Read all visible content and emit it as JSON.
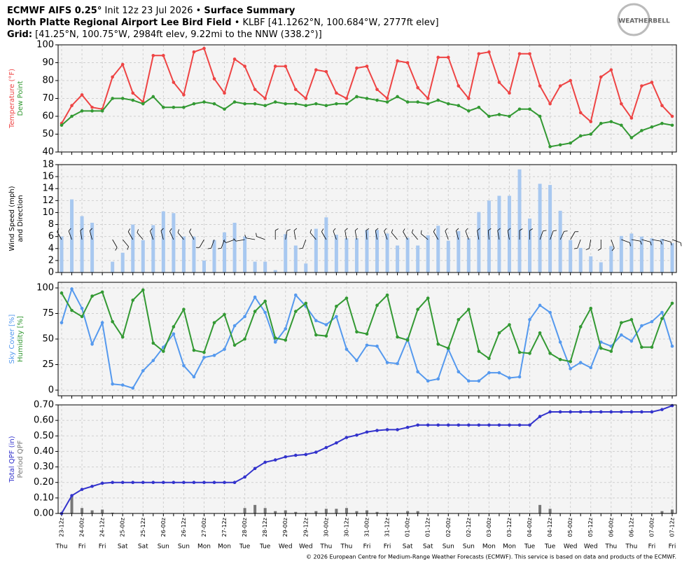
{
  "header": {
    "line1": [
      "ECMWF AIFS 0.25°",
      " Init 12z 23 Jul 2026 • ",
      "Surface Summary"
    ],
    "line2": [
      "North Platte Regional Airport Lee Bird Field",
      " • KLBF [41.1262°N, 100.684°W, 2777ft elev]"
    ],
    "line3": [
      "Grid:",
      " [41.25°N, 100.75°W, 2984ft elev, 9.22mi to the NNW (338.2°)]"
    ],
    "logo": "WEATHERBELL"
  },
  "footer": "© 2026 European Centre for Medium-Range Weather Forecasts (ECMWF). This service is based on data and products of the ECMWF.",
  "x_axis": {
    "categories": [
      "23-12z",
      null,
      "24-00z",
      null,
      "24-12z",
      null,
      "25-00z",
      null,
      "25-12z",
      null,
      "26-00z",
      null,
      "26-12z",
      null,
      "27-00z",
      null,
      "27-12z",
      null,
      "28-00z",
      null,
      "28-12z",
      null,
      "29-00z",
      null,
      "29-12z",
      null,
      "30-00z",
      null,
      "30-12z",
      null,
      "31-00z",
      null,
      "31-12z",
      null,
      "01-00z",
      null,
      "01-12z",
      null,
      "02-00z",
      null,
      "02-12z",
      null,
      "03-00z",
      null,
      "03-12z",
      null,
      "04-00z",
      null,
      "04-12z",
      null,
      "05-00z",
      null,
      "05-12z",
      null,
      "06-00z",
      null,
      "06-12z",
      null,
      "07-00z",
      null,
      "07-12z"
    ],
    "days": [
      "Thu",
      null,
      "Fri",
      null,
      "Fri",
      null,
      "Sat",
      null,
      "Sat",
      null,
      "Sun",
      null,
      "Sun",
      null,
      "Mon",
      null,
      "Mon",
      null,
      "Tue",
      null,
      "Tue",
      null,
      "Wed",
      null,
      "Wed",
      null,
      "Thu",
      null,
      "Thu",
      null,
      "Fri",
      null,
      "Fri",
      null,
      "Sat",
      null,
      "Sat",
      null,
      "Sun",
      null,
      "Sun",
      null,
      "Mon",
      null,
      "Mon",
      null,
      "Tue",
      null,
      "Tue",
      null,
      "Wed",
      null,
      "Wed",
      null,
      "Thu",
      null,
      "Thu",
      null,
      "Fri",
      null,
      "Fri"
    ]
  },
  "chart_data": [
    {
      "type": "line",
      "ylabel": [
        "Temperature (°F)",
        "Dew Point"
      ],
      "ylim": [
        40,
        100
      ],
      "yticks": [
        40,
        50,
        60,
        70,
        80,
        90,
        100
      ],
      "grid": true,
      "series": [
        {
          "name": "Temperature (°F)",
          "color": "#ee4444",
          "values": [
            56,
            66,
            72,
            65,
            64,
            82,
            89,
            73,
            68,
            94,
            94,
            79,
            72,
            96,
            98,
            81,
            73,
            92,
            88,
            75,
            70,
            88,
            88,
            75,
            70,
            86,
            85,
            73,
            70,
            87,
            88,
            75,
            70,
            91,
            90,
            76,
            70,
            93,
            93,
            77,
            70,
            95,
            96,
            79,
            73,
            95,
            95,
            77,
            67,
            77,
            80,
            62,
            57,
            82,
            86,
            67,
            59,
            77,
            79,
            66,
            60
          ]
        },
        {
          "name": "Dew Point",
          "color": "#339933",
          "values": [
            55,
            60,
            63,
            63,
            63,
            70,
            70,
            69,
            67,
            71,
            65,
            65,
            65,
            67,
            68,
            67,
            64,
            68,
            67,
            67,
            66,
            68,
            67,
            67,
            66,
            67,
            66,
            67,
            67,
            71,
            70,
            69,
            68,
            71,
            68,
            68,
            67,
            69,
            67,
            66,
            63,
            65,
            60,
            61,
            60,
            64,
            64,
            60,
            43,
            44,
            45,
            49,
            50,
            56,
            57,
            55,
            48,
            52,
            54,
            56,
            55
          ]
        }
      ]
    },
    {
      "type": "bar",
      "ylabel": [
        "Wind Speed (mph)",
        "and Direction"
      ],
      "ylabel_color": "#000000",
      "ylim": [
        0,
        18
      ],
      "yticks": [
        0,
        2,
        4,
        6,
        8,
        10,
        12,
        14,
        16,
        18
      ],
      "grid": true,
      "series": [
        {
          "name": "Wind Speed (mph)",
          "color": "#a8c8f0",
          "values": [
            6,
            12.2,
            9.4,
            8.3,
            0,
            1.8,
            3.3,
            8,
            5.4,
            7.9,
            10.2,
            9.9,
            6,
            6,
            2,
            5.4,
            6.7,
            8.3,
            6,
            1.8,
            1.8,
            0.4,
            6.4,
            4.5,
            1.5,
            7.3,
            9.2,
            6.3,
            5.7,
            5.7,
            7.1,
            7.1,
            6.5,
            4.5,
            5.8,
            4.5,
            6.2,
            7.8,
            5.3,
            6.9,
            5.7,
            10.1,
            12,
            12.8,
            12.8,
            17.2,
            9,
            14.8,
            14.6,
            10.3,
            5.4,
            4.1,
            2.7,
            1.7,
            4.4,
            6.1,
            6.5,
            6,
            5.7,
            5.6,
            4.9
          ]
        }
      ],
      "directions": [
        330,
        340,
        350,
        345,
        0,
        150,
        140,
        330,
        320,
        340,
        345,
        335,
        320,
        330,
        210,
        200,
        200,
        250,
        260,
        280,
        290,
        0,
        10,
        350,
        200,
        320,
        330,
        340,
        350,
        350,
        355,
        350,
        340,
        320,
        330,
        320,
        310,
        330,
        340,
        345,
        340,
        350,
        355,
        350,
        350,
        0,
        0,
        20,
        20,
        25,
        30,
        200,
        190,
        180,
        160,
        110,
        100,
        105,
        100,
        105,
        110
      ]
    },
    {
      "type": "line",
      "ylabel": [
        "Sky Cover [%]",
        "Humidity [%]"
      ],
      "ylim": [
        -5.5,
        105.5
      ],
      "yticks": [
        0,
        25,
        50,
        75,
        100
      ],
      "grid": true,
      "series": [
        {
          "name": "Sky Cover [%]",
          "color": "#5599ee",
          "values": [
            66,
            99,
            80,
            45,
            66,
            6,
            5,
            2,
            19,
            29,
            42,
            55,
            24,
            13,
            32,
            34,
            40,
            63,
            72,
            91,
            76,
            47,
            60,
            93,
            82,
            68,
            64,
            72,
            40,
            29,
            44,
            43,
            27,
            26,
            50,
            18,
            9,
            11,
            40,
            18,
            9,
            9,
            17,
            17,
            12,
            13,
            69,
            83,
            76,
            47,
            21,
            27,
            22,
            47,
            43,
            54,
            48,
            63,
            67,
            76,
            43
          ]
        },
        {
          "name": "Humidity [%]",
          "color": "#339933",
          "values": [
            95,
            78,
            72,
            92,
            96,
            67,
            52,
            88,
            98,
            46,
            38,
            62,
            79,
            39,
            37,
            66,
            74,
            44,
            50,
            77,
            87,
            51,
            49,
            77,
            85,
            54,
            53,
            82,
            90,
            57,
            55,
            83,
            93,
            52,
            49,
            79,
            90,
            45,
            41,
            69,
            79,
            38,
            31,
            56,
            64,
            37,
            36,
            56,
            36,
            30,
            28,
            62,
            80,
            41,
            38,
            66,
            69,
            42,
            42,
            70,
            85
          ]
        }
      ]
    },
    {
      "type": "combo",
      "ylabel": [
        "Total QPF (in)",
        "Period QPF"
      ],
      "ylim": [
        0,
        0.7
      ],
      "yticks": [
        {
          "value": 0,
          "label": "0.00"
        },
        {
          "value": 0.1,
          "label": "0.10"
        },
        {
          "value": 0.2,
          "label": "0.20"
        },
        {
          "value": 0.3,
          "label": "0.30"
        },
        {
          "value": 0.4,
          "label": "0.40"
        },
        {
          "value": 0.5,
          "label": "0.50"
        },
        {
          "value": 0.6,
          "label": "0.60"
        },
        {
          "value": 0.7,
          "label": "0.70"
        }
      ],
      "grid": true,
      "series": [
        {
          "name": "Total QPF (in)",
          "color": "#3333cc",
          "kind": "line",
          "values": [
            0,
            0.115,
            0.155,
            0.175,
            0.195,
            0.2,
            0.2,
            0.2,
            0.2,
            0.2,
            0.2,
            0.2,
            0.2,
            0.2,
            0.2,
            0.2,
            0.2,
            0.2,
            0.235,
            0.29,
            0.33,
            0.345,
            0.365,
            0.375,
            0.38,
            0.395,
            0.425,
            0.455,
            0.49,
            0.505,
            0.525,
            0.535,
            0.54,
            0.54,
            0.555,
            0.57,
            0.57,
            0.57,
            0.57,
            0.57,
            0.57,
            0.57,
            0.57,
            0.57,
            0.57,
            0.57,
            0.57,
            0.625,
            0.655,
            0.655,
            0.655,
            0.655,
            0.655,
            0.655,
            0.655,
            0.655,
            0.655,
            0.655,
            0.655,
            0.67,
            0.695
          ]
        },
        {
          "name": "Period QPF",
          "color": "#777777",
          "kind": "bar",
          "values": [
            0,
            0.115,
            0.035,
            0.02,
            0.025,
            0.005,
            0,
            0,
            0,
            0,
            0,
            0,
            0,
            0,
            0,
            0,
            0,
            0,
            0.035,
            0.055,
            0.035,
            0.015,
            0.02,
            0.01,
            0.005,
            0.015,
            0.03,
            0.03,
            0.035,
            0.015,
            0.02,
            0.01,
            0.005,
            0,
            0.015,
            0.015,
            0,
            0,
            0,
            0,
            0,
            0,
            0,
            0,
            0,
            0,
            0,
            0.055,
            0.03,
            0,
            0,
            0,
            0,
            0,
            0,
            0,
            0,
            0,
            0,
            0.015,
            0.025
          ]
        }
      ]
    }
  ]
}
